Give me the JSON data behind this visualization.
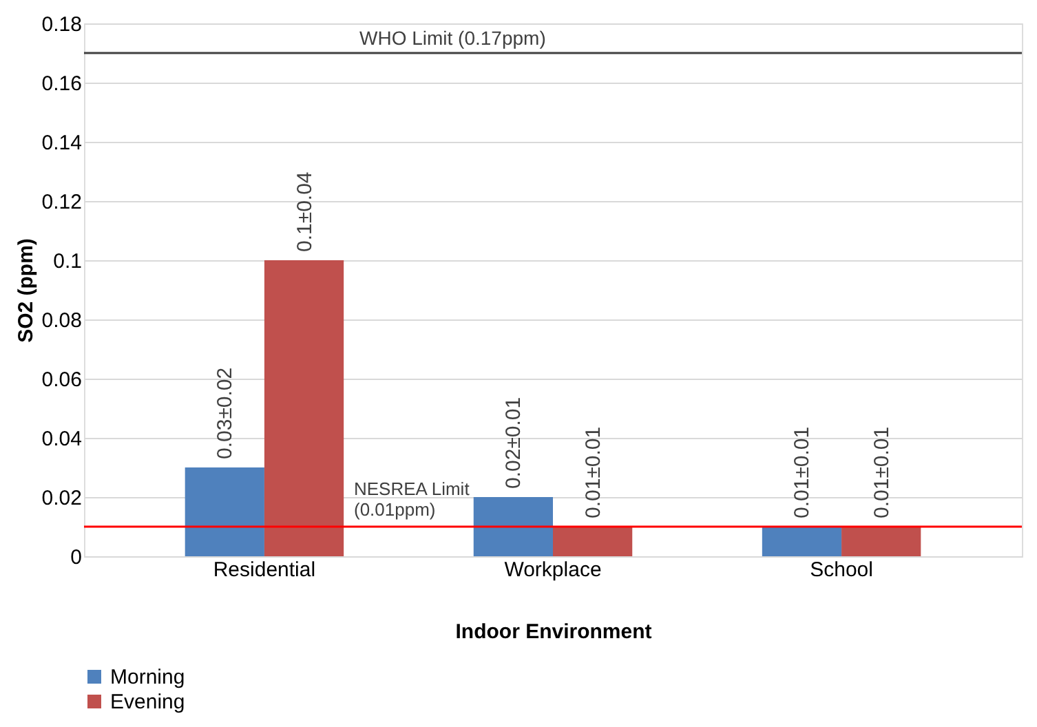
{
  "chart_data": {
    "type": "bar",
    "xlabel": "Indoor Environment",
    "ylabel": "SO2 (ppm)",
    "categories": [
      "Residential",
      "Workplace",
      "School"
    ],
    "series": [
      {
        "name": "Morning",
        "color": "#4f81bd",
        "values": [
          0.03,
          0.02,
          0.01
        ],
        "value_labels": [
          "0.03±0.02",
          "0.02±0.01",
          "0.01±0.01"
        ]
      },
      {
        "name": "Evening",
        "color": "#c0504d",
        "values": [
          0.1,
          0.01,
          0.01
        ],
        "value_labels": [
          "0.1±0.04",
          "0.01±0.01",
          "0.01±0.01"
        ]
      }
    ],
    "ylim": [
      0,
      0.18
    ],
    "yticks": [
      0,
      0.02,
      0.04,
      0.06,
      0.08,
      0.1,
      0.12,
      0.14,
      0.16,
      0.18
    ],
    "grid": "y",
    "legend": "bottom left",
    "ref_lines": [
      {
        "axis": "y",
        "value": 0.17,
        "label": "WHO Limit (0.17ppm)",
        "color": "#404040"
      },
      {
        "axis": "y",
        "value": 0.01,
        "label": "NESREA Limit (0.01ppm)",
        "color": "#ff0000"
      }
    ]
  }
}
